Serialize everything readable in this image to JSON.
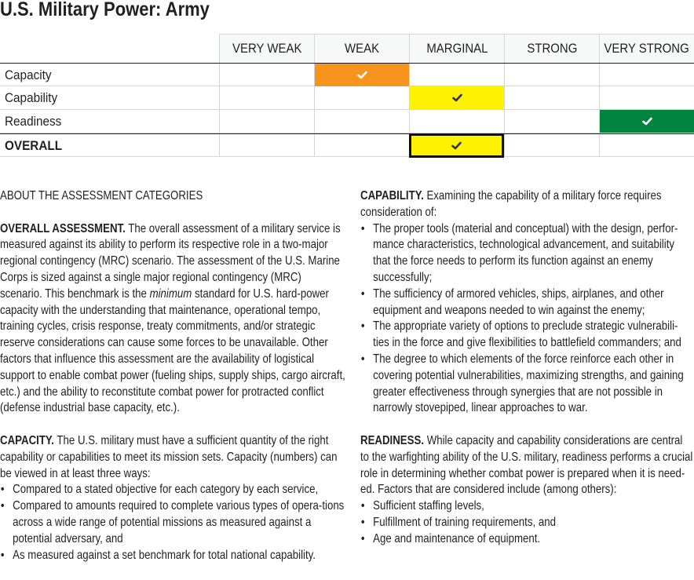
{
  "title": "U.S. Military Power: Army",
  "table": {
    "columns": [
      "VERY WEAK",
      "WEAK",
      "MARGINAL",
      "STRONG",
      "VERY STRONG"
    ],
    "rows": [
      {
        "label": "Capacity",
        "rating_index": 1,
        "color": "#f7941d",
        "check_color": "#ffffff",
        "bold": false
      },
      {
        "label": "Capability",
        "rating_index": 2,
        "color": "#fff200",
        "check_color": "#2e3153",
        "bold": false
      },
      {
        "label": "Readiness",
        "rating_index": 4,
        "color": "#00843d",
        "check_color": "#ffffff",
        "bold": false
      },
      {
        "label": "OVERALL",
        "rating_index": 2,
        "color": "#fff200",
        "check_color": "#2e3153",
        "bold": true
      }
    ],
    "check_icon": "checkmark-icon"
  },
  "about_heading": "ABOUT THE ASSESSMENT CATEGORIES",
  "overall": {
    "lead": "OVERALL ASSESSMENT.",
    "text_before": " The overall assessment of a military service is measured against its ability to perform its respective role in a two-major regional contingency (MRC) scenario. The assessment of the U.S. Marine Corps is sized against a single major regional contingency (MRC) scenario. This benchmark is the ",
    "emphasis": "minimum",
    "text_after": " standard for U.S. hard-power capacity with the understanding that maintenance, operational tempo, training cycles, crisis response, treaty commitments, and/or strategic reserve considerations can cause some forces to be unavailable. Other factors that influence this assessment are the availability of logistical support to enable combat power (fueling ships, supply ships, cargo aircraft, etc.) and the ability to reconstitute combat power for protracted conflict (defense industrial base capacity, etc.)."
  },
  "capacity": {
    "lead": "CAPACITY.",
    "text": " The U.S. military must have a sufficient quantity of the right capability or capabilities to meet its mission sets. Capacity (numbers) can be viewed in at least three ways:",
    "bullets": [
      "Compared to a stated objective for each category by each service,",
      "Compared to amounts required to complete various types of opera-tions across a wide range of potential missions as measured against a potential adversary, and",
      "As measured against a set benchmark for total national capability."
    ]
  },
  "capability": {
    "lead": "CAPABILITY.",
    "text": " Examining the capability of a military force requires consideration of:",
    "bullets": [
      "The proper tools (material and conceptual) with the design, perfor-mance characteristics, technological advancement, and suitability that the force needs to perform its function against an enemy successfully;",
      "The sufficiency of armored vehicles, ships, airplanes, and other equipment and weapons needed to win against the enemy;",
      "The appropriate variety of options to preclude strategic vulnerabili-ties in the force and give flexibilities to battlefield commanders; and",
      "The degree to which elements of the force reinforce each other in covering potential vulnerabilities, maximizing strengths, and gaining greater effectiveness through synergies that are not possible in narrowly stovepiped, linear approaches to war."
    ]
  },
  "readiness": {
    "lead": "READINESS.",
    "text": " While capacity and capability considerations are central to the warfighting ability of the U.S. military, readiness performs a crucial role in determining whether combat power is prepared when it is need-ed. Factors that are considered include (among others):",
    "bullets": [
      "Sufficient staffing levels,",
      "Fulfillment of training requirements, and",
      "Age and maintenance of equipment."
    ]
  }
}
